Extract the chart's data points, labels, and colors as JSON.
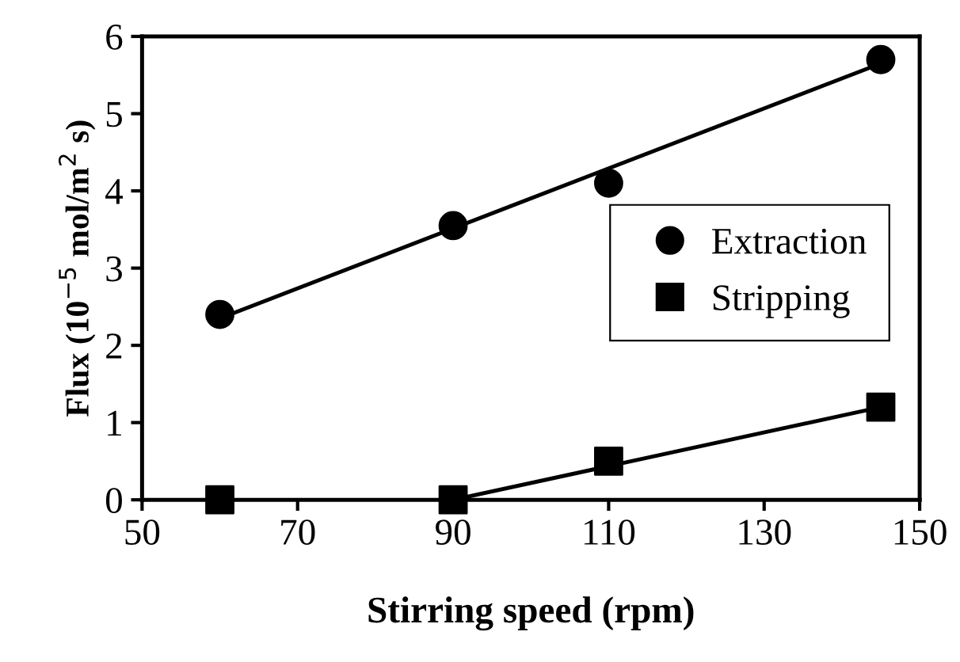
{
  "chart_data": {
    "type": "scatter",
    "xlabel": "Stirring speed (rpm)",
    "ylabel": "Flux (10$^{−5}$ mol/m$^{2}$ s)",
    "x": [
      60,
      90,
      110,
      145
    ],
    "series": [
      {
        "name": "Extraction",
        "color": "#000000",
        "marker": "circle",
        "values": [
          2.4,
          3.55,
          4.1,
          5.7
        ]
      },
      {
        "name": "Stripping",
        "color": "#000000",
        "marker": "square",
        "values": [
          0,
          0,
          0.5,
          1.2
        ]
      },
      {
        "type": "line",
        "color": "#000000",
        "marker": "none",
        "x": [
          60,
          145
        ],
        "values": [
          2.35,
          5.65
        ]
      },
      {
        "type": "line",
        "color": "#000000",
        "marker": "none",
        "x": [
          90,
          145
        ],
        "values": [
          0,
          1.2
        ]
      }
    ],
    "xlim": [
      50,
      150
    ],
    "xticks": [
      50,
      70,
      90,
      110,
      130,
      150
    ],
    "ylim": [
      0,
      6
    ],
    "yticks": [
      0,
      1,
      2,
      3,
      4,
      5,
      6
    ],
    "grid": false,
    "legend": "center right"
  }
}
